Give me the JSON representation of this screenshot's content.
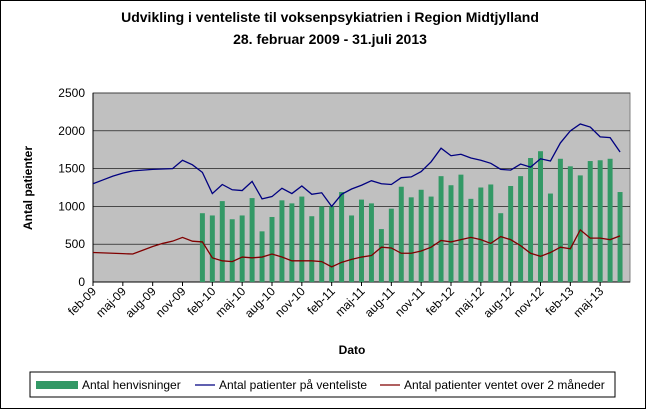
{
  "chart_data": {
    "type": "bar",
    "title": "Udvikling i venteliste til voksenpsykiatrien i Region Midtjylland",
    "subtitle": "28. februar 2009 - 31.juli 2013",
    "y_label": "Antal patienter",
    "x_label": "Dato",
    "categories": [
      "feb-09",
      null,
      null,
      "maj-09",
      null,
      null,
      "aug-09",
      null,
      null,
      "nov-09",
      null,
      null,
      "feb-10",
      null,
      null,
      "maj-10",
      null,
      null,
      "aug-10",
      null,
      null,
      "nov-10",
      null,
      null,
      "feb-11",
      null,
      null,
      "maj-11",
      null,
      null,
      "aug-11",
      null,
      null,
      "nov-11",
      null,
      null,
      "feb-12",
      null,
      null,
      "maj-12",
      null,
      null,
      "aug-12",
      null,
      null,
      "nov-12",
      null,
      null,
      "feb-13",
      null,
      null,
      "maj-13",
      null,
      null
    ],
    "series": [
      {
        "name": "Antal henvisninger",
        "type": "bar",
        "color": "#339966",
        "values": [
          null,
          null,
          null,
          null,
          null,
          null,
          null,
          null,
          null,
          null,
          null,
          910,
          880,
          1070,
          830,
          880,
          1110,
          670,
          860,
          1080,
          1040,
          1130,
          870,
          1000,
          1000,
          1190,
          880,
          1090,
          1040,
          700,
          970,
          1260,
          1120,
          1220,
          1130,
          1400,
          1280,
          1420,
          1100,
          1250,
          1290,
          910,
          1270,
          1400,
          1640,
          1730,
          1170,
          1630,
          1530,
          1410,
          1600,
          1610,
          1630,
          1190
        ]
      },
      {
        "name": "Antal patienter på venteliste",
        "type": "line",
        "color": "#000080",
        "values": [
          1300,
          1350,
          1400,
          1440,
          1470,
          1480,
          1490,
          1495,
          1500,
          1610,
          1550,
          1450,
          1170,
          1290,
          1220,
          1210,
          1330,
          1100,
          1130,
          1240,
          1170,
          1270,
          1160,
          1180,
          1000,
          1160,
          1230,
          1280,
          1340,
          1300,
          1290,
          1380,
          1390,
          1460,
          1590,
          1770,
          1670,
          1690,
          1640,
          1610,
          1570,
          1490,
          1480,
          1560,
          1520,
          1630,
          1600,
          1840,
          2000,
          2090,
          2050,
          1920,
          1910,
          1720
        ]
      },
      {
        "name": "Antal patienter ventet over 2 måneder",
        "type": "line",
        "color": "#800000",
        "values": [
          390,
          385,
          380,
          375,
          370,
          420,
          470,
          510,
          540,
          590,
          540,
          530,
          320,
          280,
          270,
          330,
          320,
          330,
          370,
          330,
          280,
          280,
          280,
          270,
          200,
          260,
          300,
          330,
          350,
          460,
          450,
          380,
          380,
          410,
          460,
          550,
          530,
          560,
          590,
          560,
          510,
          600,
          560,
          480,
          380,
          340,
          390,
          460,
          440,
          690,
          580,
          580,
          560,
          610
        ]
      }
    ],
    "ylim": [
      0,
      2500
    ],
    "yticks": [
      0,
      500,
      1000,
      1500,
      2000,
      2500
    ],
    "grid": true,
    "legend": "bottom"
  }
}
